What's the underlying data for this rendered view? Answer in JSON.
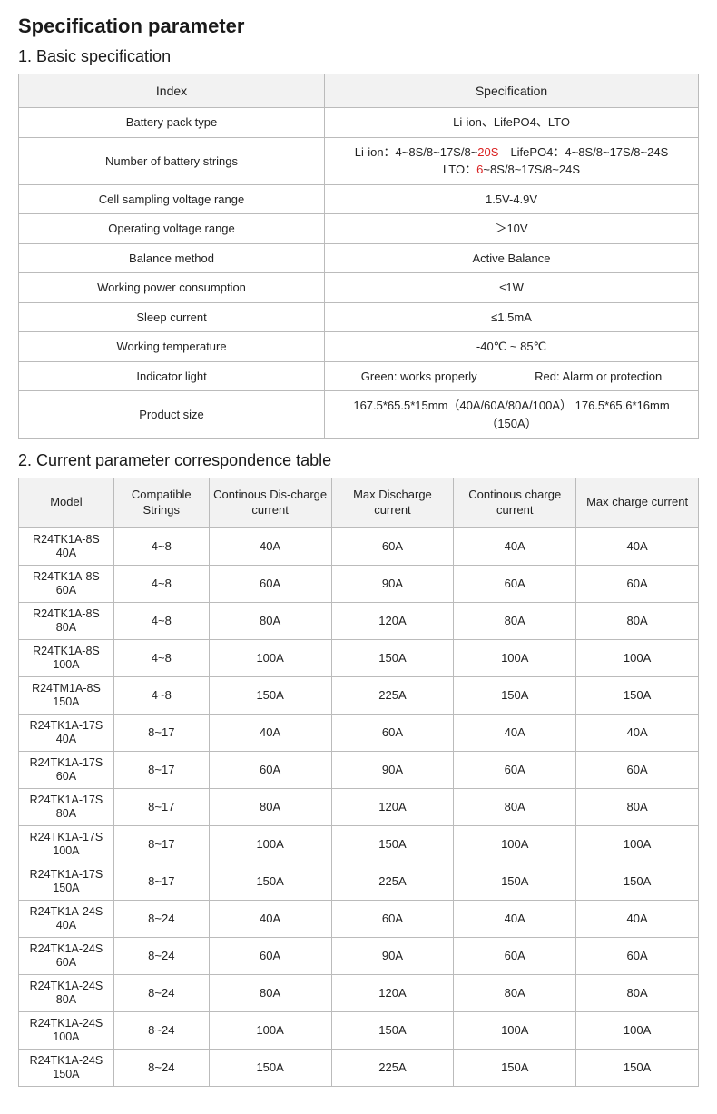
{
  "title": "Specification parameter",
  "section1": {
    "heading": "1. Basic specification",
    "columns": [
      "Index",
      "Specification"
    ],
    "rows": [
      {
        "index": "Battery pack type",
        "spec": "Li-ion、LifePO4、LTO"
      },
      {
        "index": "Number of battery strings",
        "spec_parts": {
          "p1": "Li-ion：4~8S/8~17S/8~",
          "p1_red": "20S",
          "p2": "　LifePO4：4~8S/8~17S/8~24S",
          "p3": "LTO：",
          "p3_red": "6",
          "p4": "~8S/8~17S/8~24S"
        }
      },
      {
        "index": "Cell sampling voltage range",
        "spec": "1.5V-4.9V"
      },
      {
        "index": "Operating voltage range",
        "spec": "＞10V"
      },
      {
        "index": "Balance method",
        "spec": "Active Balance"
      },
      {
        "index": "Working power consumption",
        "spec": "≤1W"
      },
      {
        "index": "Sleep current",
        "spec": "≤1.5mA"
      },
      {
        "index": "Working temperature",
        "spec": "-40℃ ~ 85℃"
      },
      {
        "index": "Indicator light",
        "spec_green": "Green: works properly",
        "spec_red": "Red: Alarm or protection"
      },
      {
        "index": "Product size",
        "spec": "167.5*65.5*15mm（40A/60A/80A/100A）  176.5*65.6*16mm（150A）"
      }
    ]
  },
  "section2": {
    "heading": "2. Current parameter correspondence table",
    "columns": [
      "Model",
      "Compatible Strings",
      "Continous Dis-charge current",
      "Max Discharge current",
      "Continous charge current",
      "Max charge current"
    ],
    "rows": [
      [
        "R24TK1A-8S 40A",
        "4~8",
        "40A",
        "60A",
        "40A",
        "40A"
      ],
      [
        "R24TK1A-8S 60A",
        "4~8",
        "60A",
        "90A",
        "60A",
        "60A"
      ],
      [
        "R24TK1A-8S 80A",
        "4~8",
        "80A",
        "120A",
        "80A",
        "80A"
      ],
      [
        "R24TK1A-8S 100A",
        "4~8",
        "100A",
        "150A",
        "100A",
        "100A"
      ],
      [
        "R24TM1A-8S 150A",
        "4~8",
        "150A",
        "225A",
        "150A",
        "150A"
      ],
      [
        "R24TK1A-17S 40A",
        "8~17",
        "40A",
        "60A",
        "40A",
        "40A"
      ],
      [
        "R24TK1A-17S 60A",
        "8~17",
        "60A",
        "90A",
        "60A",
        "60A"
      ],
      [
        "R24TK1A-17S 80A",
        "8~17",
        "80A",
        "120A",
        "80A",
        "80A"
      ],
      [
        "R24TK1A-17S 100A",
        "8~17",
        "100A",
        "150A",
        "100A",
        "100A"
      ],
      [
        "R24TK1A-17S 150A",
        "8~17",
        "150A",
        "225A",
        "150A",
        "150A"
      ],
      [
        "R24TK1A-24S 40A",
        "8~24",
        "40A",
        "60A",
        "40A",
        "40A"
      ],
      [
        "R24TK1A-24S 60A",
        "8~24",
        "60A",
        "90A",
        "60A",
        "60A"
      ],
      [
        "R24TK1A-24S 80A",
        "8~24",
        "80A",
        "120A",
        "80A",
        "80A"
      ],
      [
        "R24TK1A-24S 100A",
        "8~24",
        "100A",
        "150A",
        "100A",
        "100A"
      ],
      [
        "R24TK1A-24S 150A",
        "8~24",
        "150A",
        "225A",
        "150A",
        "150A"
      ]
    ]
  },
  "style": {
    "background_color": "#ffffff",
    "text_color": "#222222",
    "border_color": "#bbbbbb",
    "header_bg": "#f2f2f2",
    "red_color": "#d92020",
    "title_fontsize": 22,
    "h2_fontsize": 18,
    "cell_fontsize": 13
  }
}
